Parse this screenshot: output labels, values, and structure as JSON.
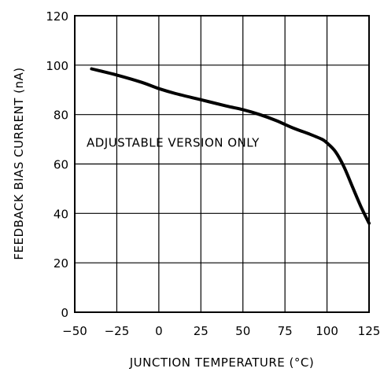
{
  "chart_data": {
    "type": "line",
    "title": "",
    "xlabel": "JUNCTION TEMPERATURE (°C)",
    "ylabel": "FEEDBACK BIAS CURRENT (nA)",
    "xlim": [
      -50,
      125
    ],
    "ylim": [
      0,
      120
    ],
    "x_ticks": [
      -50,
      -25,
      0,
      25,
      50,
      75,
      100,
      125
    ],
    "y_ticks": [
      0,
      20,
      40,
      60,
      80,
      100,
      120
    ],
    "grid": true,
    "annotation": {
      "text": "ADJUSTABLE VERSION ONLY",
      "x": -43,
      "y": 67
    },
    "series": [
      {
        "x": [
          -40,
          -25,
          -10,
          0,
          10,
          25,
          40,
          50,
          60,
          70,
          80,
          90,
          97,
          100,
          105,
          110,
          115,
          120,
          125
        ],
        "y": [
          98.5,
          96,
          93,
          90.5,
          88.5,
          86,
          83.5,
          82,
          80,
          77.5,
          74.5,
          72,
          70,
          68.5,
          65,
          59,
          51,
          43,
          36
        ]
      }
    ]
  }
}
